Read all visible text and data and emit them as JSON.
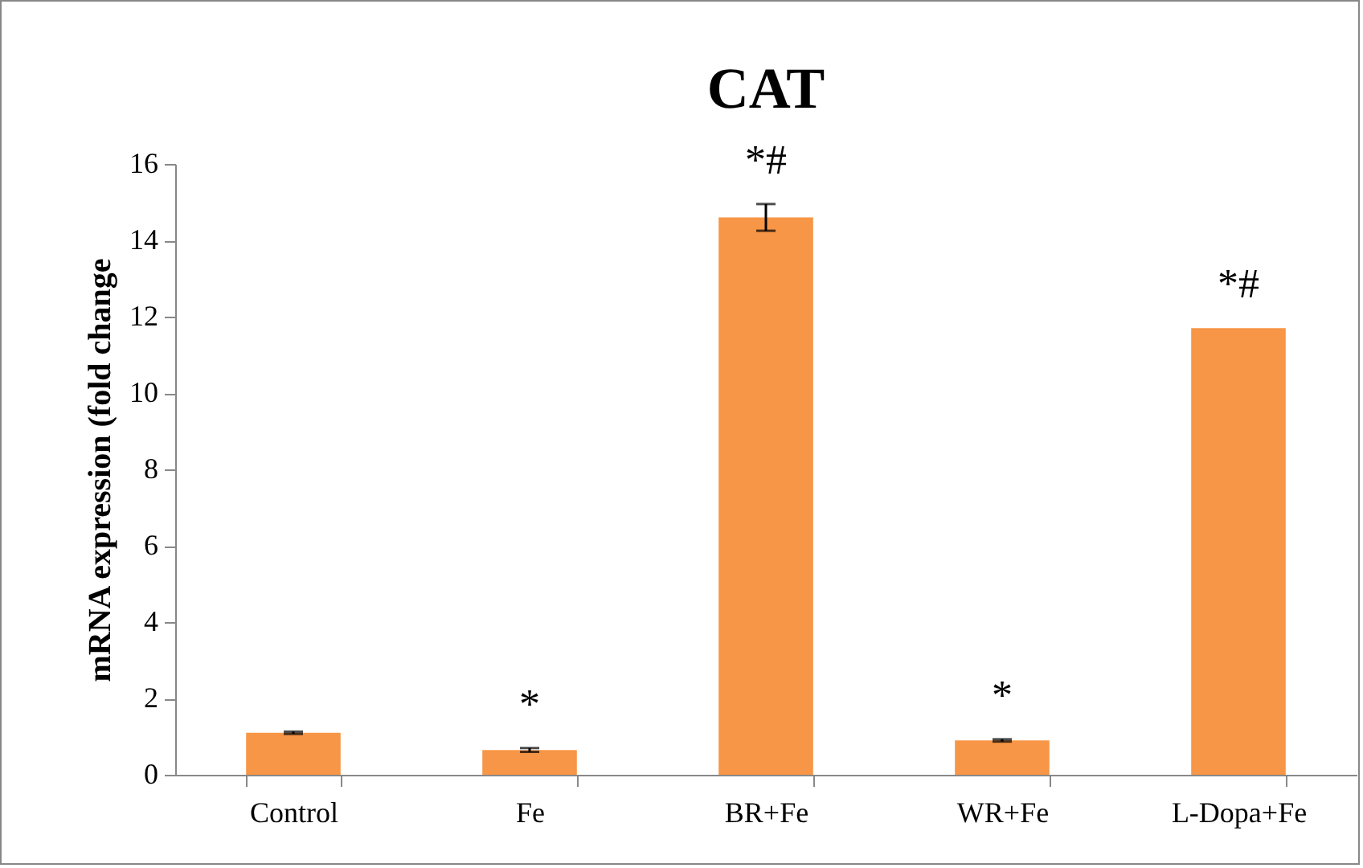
{
  "chart_data": {
    "type": "bar",
    "title": "CAT",
    "ylabel": "mRNA expression (fold change",
    "categories": [
      "Control",
      "Fe",
      "BR+Fe",
      "WR+Fe",
      "L-Dopa+Fe"
    ],
    "values": [
      1.1,
      0.65,
      14.6,
      0.9,
      11.7
    ],
    "color": "#f79646",
    "errors": [
      0.03,
      0.05,
      0.35,
      0.03,
      null
    ],
    "ylim": [
      0,
      16
    ],
    "yticks": [
      0,
      2,
      4,
      6,
      8,
      10,
      12,
      14,
      16
    ],
    "grid": false,
    "value_labels": [
      null,
      "*",
      "*#",
      "*",
      "*#"
    ]
  }
}
